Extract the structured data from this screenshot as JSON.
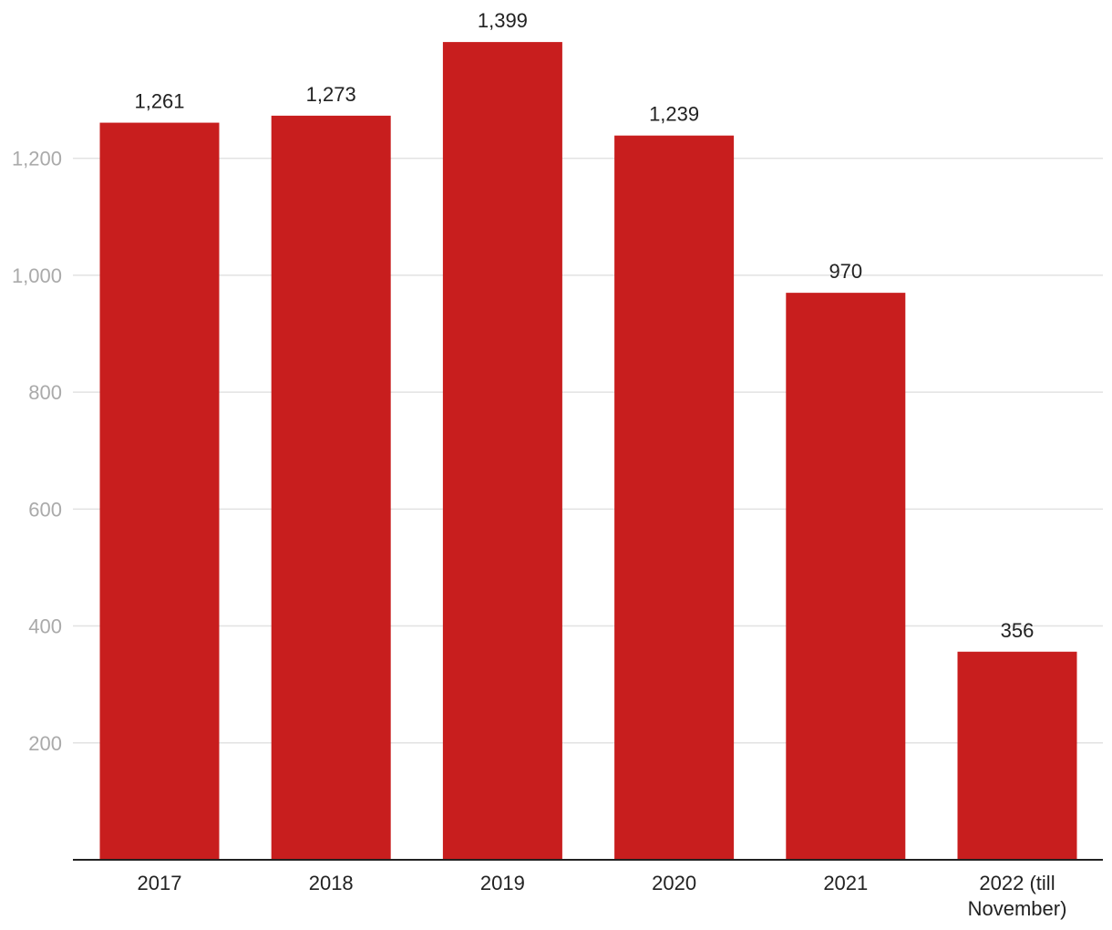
{
  "chart_data": {
    "type": "bar",
    "title": "",
    "xlabel": "",
    "ylabel": "",
    "categories": [
      "2017",
      "2018",
      "2019",
      "2020",
      "2021",
      "2022 (till November)"
    ],
    "category_lines": [
      [
        "2017"
      ],
      [
        "2018"
      ],
      [
        "2019"
      ],
      [
        "2020"
      ],
      [
        "2021"
      ],
      [
        "2022 (till",
        "November)"
      ]
    ],
    "values": [
      1261,
      1273,
      1399,
      1239,
      970,
      356
    ],
    "value_labels": [
      "1,261",
      "1,273",
      "1,399",
      "1,239",
      "970",
      "356"
    ],
    "ylim": [
      0,
      1400
    ],
    "yticks": [
      200,
      400,
      600,
      800,
      1000,
      1200
    ],
    "ytick_labels": [
      "200",
      "400",
      "600",
      "800",
      "1,000",
      "1,200"
    ],
    "grid": true,
    "legend": "none",
    "bar_color": "#c81e1e",
    "gridline_color": "#e2e2e2",
    "tick_label_color": "#aaaaaa",
    "text_color": "#222222"
  }
}
